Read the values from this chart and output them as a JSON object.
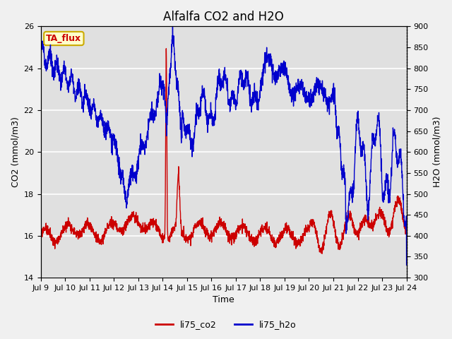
{
  "title": "Alfalfa CO2 and H2O",
  "xlabel": "Time",
  "ylabel_left": "CO2 (mmol/m3)",
  "ylabel_right": "H2O (mmol/m3)",
  "ylim_left": [
    14,
    26
  ],
  "ylim_right": [
    300,
    900
  ],
  "yticks_left": [
    14,
    16,
    18,
    20,
    22,
    24,
    26
  ],
  "yticks_right": [
    300,
    350,
    400,
    450,
    500,
    550,
    600,
    650,
    700,
    750,
    800,
    850,
    900
  ],
  "xtick_labels": [
    "Jul 9",
    "Jul 10",
    "Jul 11",
    "Jul 12",
    "Jul 13",
    "Jul 14",
    "Jul 15",
    "Jul 16",
    "Jul 17",
    "Jul 18",
    "Jul 19",
    "Jul 20",
    "Jul 21",
    "Jul 22",
    "Jul 23",
    "Jul 24"
  ],
  "color_co2": "#cc0000",
  "color_h2o": "#0000cc",
  "legend_labels": [
    "li75_co2",
    "li75_h2o"
  ],
  "annotation_text": "TA_flux",
  "annotation_color": "#cc0000",
  "annotation_bg": "#ffffcc",
  "annotation_edge": "#ccaa00",
  "fig_bg": "#f0f0f0",
  "plot_bg": "#e0e0e0",
  "title_fontsize": 12,
  "axis_fontsize": 9,
  "tick_fontsize": 8,
  "linewidth": 1.0
}
